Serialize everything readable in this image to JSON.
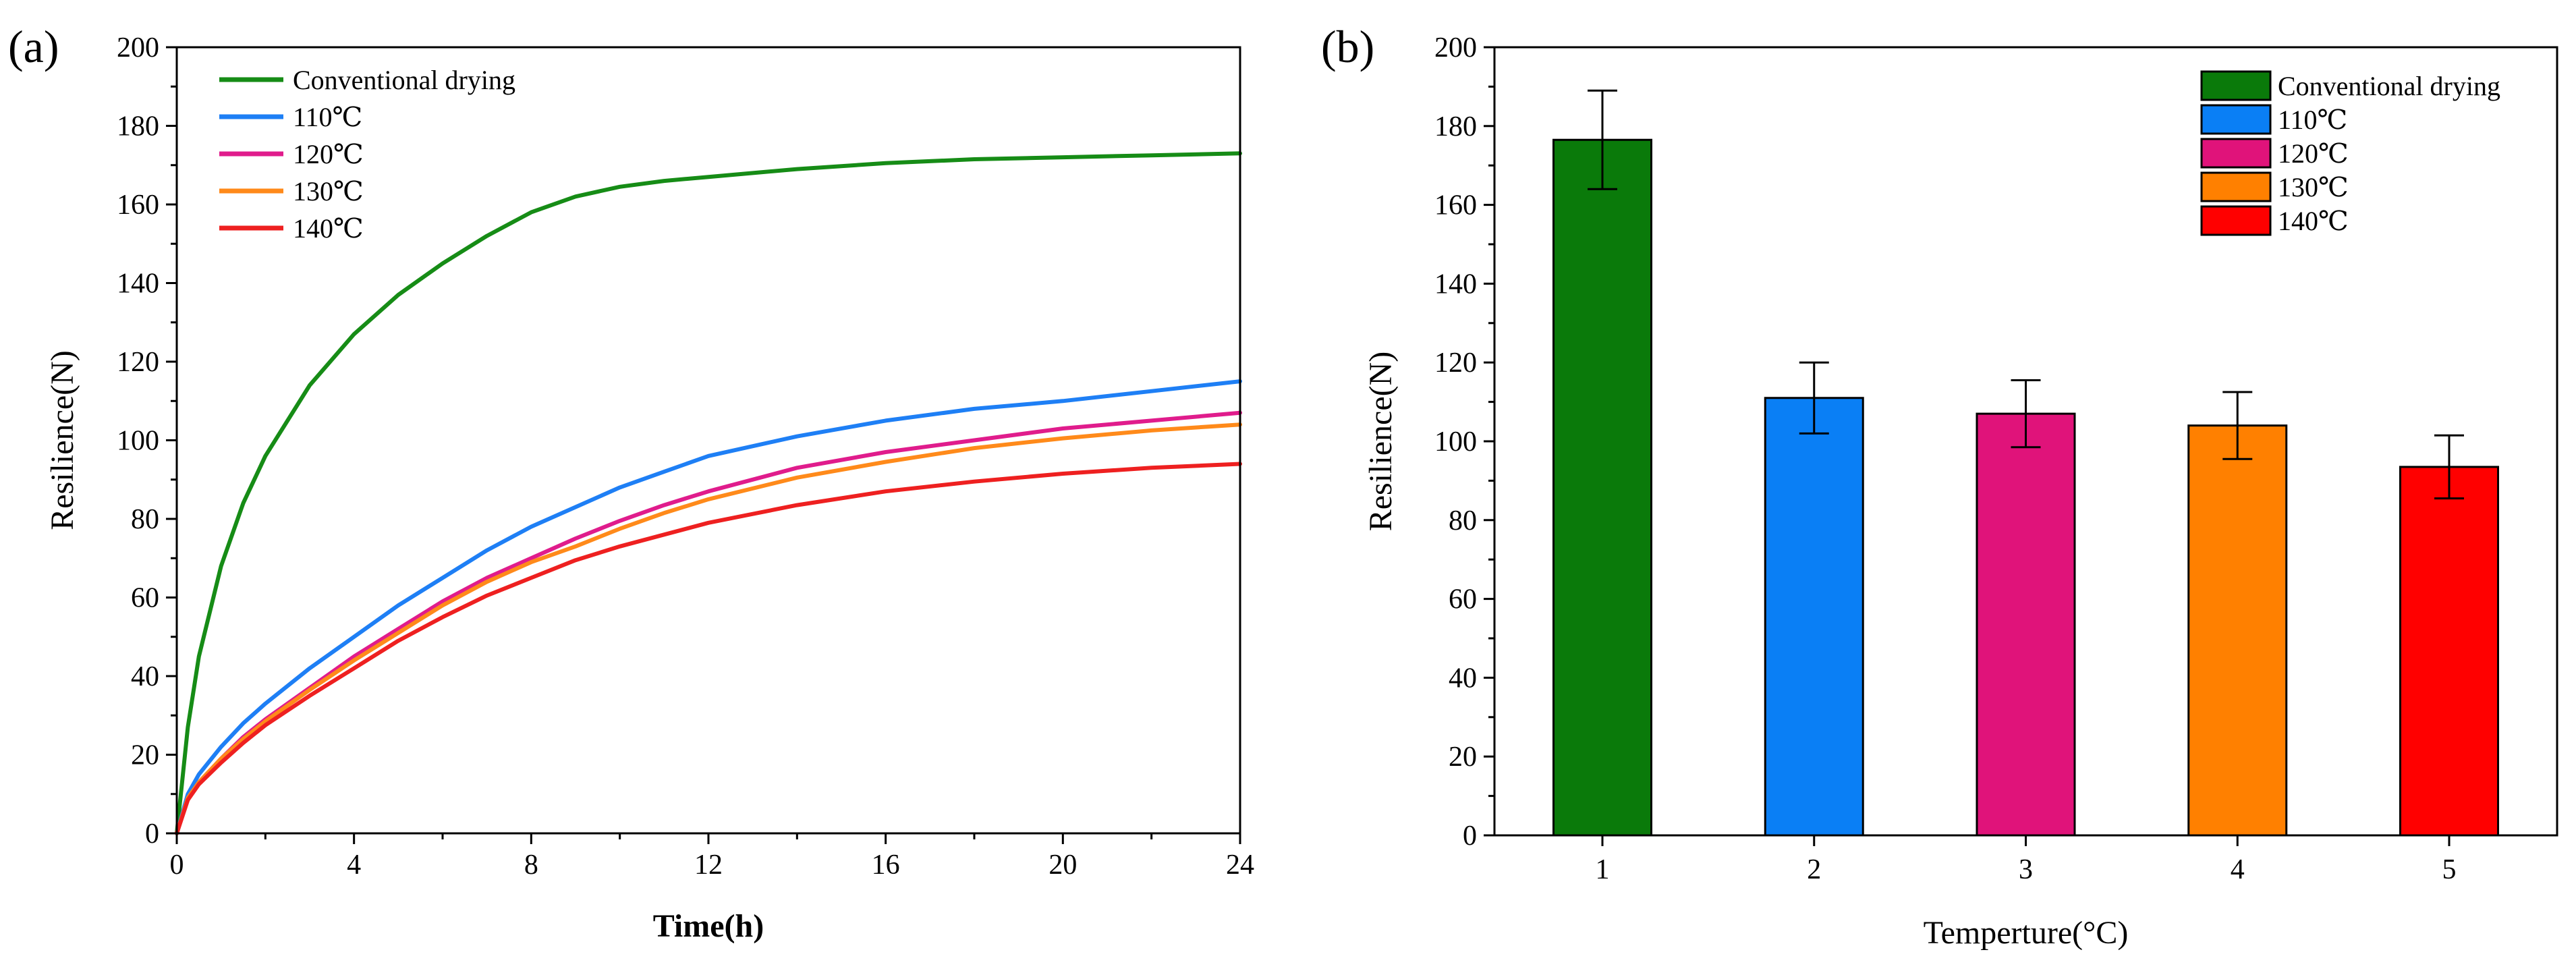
{
  "panels": {
    "a": {
      "label": "(a)"
    },
    "b": {
      "label": "(b)"
    }
  },
  "chart_data": [
    {
      "type": "line",
      "panel": "(a)",
      "xlabel": "Time(h)",
      "ylabel": "Resilience(N)",
      "xlim": [
        0,
        24
      ],
      "ylim": [
        0,
        200
      ],
      "xticks": [
        0,
        4,
        8,
        12,
        16,
        20,
        24
      ],
      "yticks": [
        0,
        20,
        40,
        60,
        80,
        100,
        120,
        140,
        160,
        180,
        200
      ],
      "x": [
        0,
        0.25,
        0.5,
        1,
        1.5,
        2,
        3,
        4,
        5,
        6,
        7,
        8,
        9,
        10,
        11,
        12,
        14,
        16,
        18,
        20,
        22,
        24
      ],
      "series": [
        {
          "name": "Conventional drying",
          "color": "#168c16",
          "values": [
            0,
            27,
            45,
            68,
            84,
            96,
            114,
            127,
            137,
            145,
            152,
            158,
            162,
            164.5,
            166,
            167,
            169,
            170.5,
            171.5,
            172,
            172.5,
            173
          ]
        },
        {
          "name": "110℃",
          "color": "#1e7ff5",
          "values": [
            0,
            10,
            15,
            22,
            28,
            33,
            42,
            50,
            58,
            65,
            72,
            78,
            83,
            88,
            92,
            96,
            101,
            105,
            108,
            110,
            112.5,
            115
          ]
        },
        {
          "name": "120℃",
          "color": "#e01c8c",
          "values": [
            0,
            9,
            13,
            19,
            24.5,
            29,
            37,
            45,
            52,
            59,
            65,
            70,
            75,
            79.5,
            83.5,
            87,
            93,
            97,
            100,
            103,
            105,
            107
          ]
        },
        {
          "name": "130℃",
          "color": "#ff8a1a",
          "values": [
            0,
            9,
            13,
            19,
            24,
            28.5,
            36.5,
            44,
            51,
            58,
            64,
            69,
            73,
            77.5,
            81.5,
            85,
            90.5,
            94.5,
            98,
            100.5,
            102.5,
            104
          ]
        },
        {
          "name": "140℃",
          "color": "#ee2020",
          "values": [
            0,
            8.5,
            12.5,
            18,
            23,
            27.5,
            35,
            42,
            49,
            55,
            60.5,
            65,
            69.5,
            73,
            76,
            79,
            83.5,
            87,
            89.5,
            91.5,
            93,
            94
          ]
        }
      ],
      "legend_position": "top-left"
    },
    {
      "type": "bar",
      "panel": "(b)",
      "xlabel": "Temperture(°C)",
      "ylabel": "Resilience(N)",
      "ylim": [
        0,
        200
      ],
      "yticks": [
        0,
        20,
        40,
        60,
        80,
        100,
        120,
        140,
        160,
        180,
        200
      ],
      "categories": [
        "1",
        "2",
        "3",
        "4",
        "5"
      ],
      "values": [
        176.5,
        111,
        107,
        104,
        93.5
      ],
      "errors": [
        12.5,
        9,
        8.5,
        8.5,
        8
      ],
      "series_names": [
        "Conventional drying",
        "110℃",
        "120℃",
        "130℃",
        "140℃"
      ],
      "colors": [
        "#0a7a0a",
        "#0a7ff5",
        "#e0137a",
        "#ff8000",
        "#ff0000"
      ],
      "legend_position": "top-right"
    }
  ]
}
